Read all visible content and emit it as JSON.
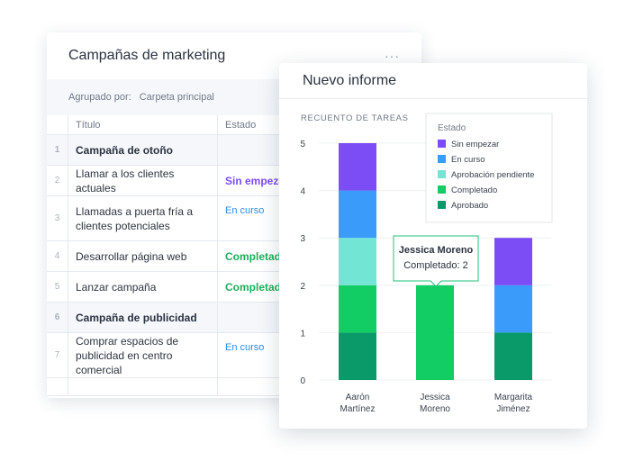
{
  "table": {
    "title": "Campañas de marketing",
    "menu_icon": "more-dots-icon",
    "menu_glyph": "···",
    "group_label": "Agrupado por:",
    "group_value": "Carpeta principal",
    "columns": [
      "Título",
      "Estado"
    ],
    "rows": [
      {
        "num": "1",
        "title": "Campaña de otoño",
        "state": "",
        "kind": "group"
      },
      {
        "num": "2",
        "title": "Llamar a los clientes actuales",
        "state": "Sin empezar",
        "kind": "sin"
      },
      {
        "num": "3",
        "title": "Llamadas a puerta fría a clientes potenciales",
        "state": "En curso",
        "kind": "curso"
      },
      {
        "num": "4",
        "title": "Desarrollar página web",
        "state": "Completado",
        "kind": "comp"
      },
      {
        "num": "5",
        "title": "Lanzar campaña",
        "state": "Completado",
        "kind": "comp"
      },
      {
        "num": "6",
        "title": "Campaña de publicidad",
        "state": "",
        "kind": "group"
      },
      {
        "num": "7",
        "title": "Comprar espacios de publicidad en centro comercial",
        "state": "En curso",
        "kind": "curso"
      }
    ]
  },
  "report": {
    "title": "Nuevo informe"
  },
  "colors": {
    "sin_empezar": "#7c4df5",
    "en_curso": "#3a9bfa",
    "aprobacion_pendiente": "#72e5d4",
    "completado": "#12cc64",
    "aprobado": "#0a9a6a"
  },
  "chart_data": {
    "type": "bar",
    "stacked": true,
    "title": "RECUENTO DE TAREAS",
    "ylim": [
      0,
      5
    ],
    "yticks": [
      "0",
      "1",
      "2",
      "3",
      "4",
      "5"
    ],
    "categories": [
      [
        "Aarón",
        "Martínez"
      ],
      [
        "Jessica",
        "Moreno"
      ],
      [
        "Margarita",
        "Jiménez"
      ]
    ],
    "legend_title": "Estado",
    "legend_position": "top-right",
    "series": [
      {
        "name": "Aprobado",
        "color": "#0a9a6a",
        "values": [
          1,
          0,
          1
        ]
      },
      {
        "name": "Completado",
        "color": "#12cc64",
        "values": [
          1,
          2,
          0
        ]
      },
      {
        "name": "Aprobación pendiente",
        "color": "#72e5d4",
        "values": [
          1,
          0,
          0
        ]
      },
      {
        "name": "En curso",
        "color": "#3a9bfa",
        "values": [
          1,
          0,
          1
        ]
      },
      {
        "name": "Sin empezar",
        "color": "#7c4df5",
        "values": [
          1,
          0,
          1
        ]
      }
    ],
    "legend_order": [
      "Sin empezar",
      "En curso",
      "Aprobación pendiente",
      "Completado",
      "Aprobado"
    ],
    "tooltip": {
      "name": "Jessica Moreno",
      "text": "Completado: 2",
      "category_index": 1
    }
  }
}
